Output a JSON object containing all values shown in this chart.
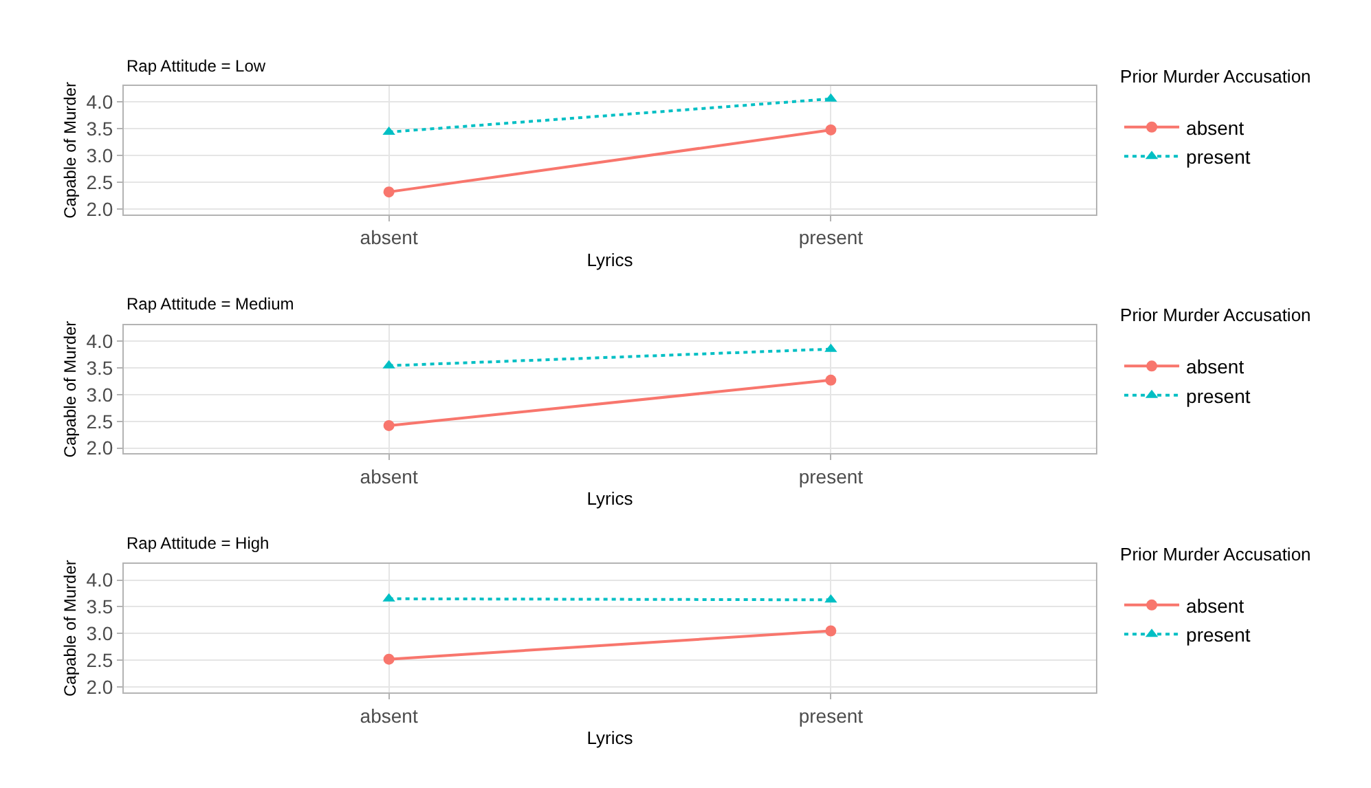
{
  "chart_data": [
    {
      "type": "line",
      "title": "Rap Attitude = Low",
      "xlabel": "Lyrics",
      "ylabel": "Capable of Murder",
      "legend_title": "Prior Murder Accusation",
      "legend": "right",
      "grid": true,
      "categories": [
        "absent",
        "present"
      ],
      "ylim": [
        1.9,
        4.3
      ],
      "yticks": [
        {
          "value": 2,
          "label": "2.0"
        },
        {
          "value": 2.5,
          "label": "2.5"
        },
        {
          "value": 3,
          "label": "3.0"
        },
        {
          "value": 3.5,
          "label": "3.5"
        },
        {
          "value": 4,
          "label": "4.0"
        }
      ],
      "series": [
        {
          "name": "absent",
          "color": "#f8766d",
          "values": [
            2.32,
            3.48
          ],
          "marker": "circle",
          "line_style": "solid"
        },
        {
          "name": "present",
          "color": "#00bfc4",
          "values": [
            3.44,
            4.06
          ],
          "marker": "triangle",
          "line_style": "dotted"
        }
      ]
    },
    {
      "type": "line",
      "title": "Rap Attitude = Medium",
      "xlabel": "Lyrics",
      "ylabel": "Capable of Murder",
      "legend_title": "Prior Murder Accusation",
      "legend": "right",
      "grid": true,
      "categories": [
        "absent",
        "present"
      ],
      "ylim": [
        1.9,
        4.3
      ],
      "yticks": [
        {
          "value": 2,
          "label": "2.0"
        },
        {
          "value": 2.5,
          "label": "2.5"
        },
        {
          "value": 3,
          "label": "3.0"
        },
        {
          "value": 3.5,
          "label": "3.5"
        },
        {
          "value": 4,
          "label": "4.0"
        }
      ],
      "series": [
        {
          "name": "absent",
          "color": "#f8766d",
          "values": [
            2.42,
            3.27
          ],
          "marker": "circle",
          "line_style": "solid"
        },
        {
          "name": "present",
          "color": "#00bfc4",
          "values": [
            3.54,
            3.85
          ],
          "marker": "triangle",
          "line_style": "dotted"
        }
      ]
    },
    {
      "type": "line",
      "title": "Rap Attitude = High",
      "xlabel": "Lyrics",
      "ylabel": "Capable of Murder",
      "legend_title": "Prior Murder Accusation",
      "legend": "right",
      "grid": true,
      "categories": [
        "absent",
        "present"
      ],
      "ylim": [
        1.9,
        4.3
      ],
      "yticks": [
        {
          "value": 2,
          "label": "2.0"
        },
        {
          "value": 2.5,
          "label": "2.5"
        },
        {
          "value": 3,
          "label": "3.0"
        },
        {
          "value": 3.5,
          "label": "3.5"
        },
        {
          "value": 4,
          "label": "4.0"
        }
      ],
      "series": [
        {
          "name": "absent",
          "color": "#f8766d",
          "values": [
            2.52,
            3.05
          ],
          "marker": "circle",
          "line_style": "solid"
        },
        {
          "name": "present",
          "color": "#00bfc4",
          "values": [
            3.65,
            3.63
          ],
          "marker": "triangle",
          "line_style": "dotted"
        }
      ]
    }
  ]
}
